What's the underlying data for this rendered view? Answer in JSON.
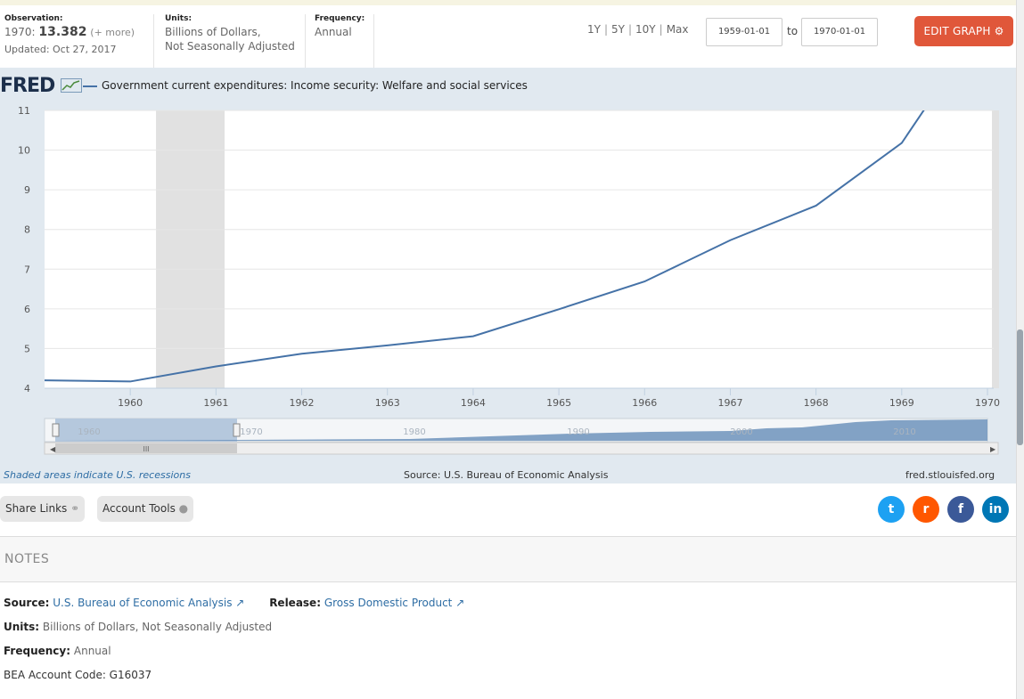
{
  "header": {
    "observation_label": "Observation:",
    "observation_date": "1970:",
    "observation_value": "13.382",
    "observation_more": "(+ more)",
    "updated": "Updated: Oct 27, 2017",
    "units_label": "Units:",
    "units_line1": "Billions of Dollars,",
    "units_line2": "Not Seasonally Adjusted",
    "frequency_label": "Frequency:",
    "frequency_value": "Annual",
    "ranges": [
      "1Y",
      "5Y",
      "10Y",
      "Max"
    ],
    "date_from": "1959-01-01",
    "to_label": "to",
    "date_to": "1970-01-01",
    "edit_label": "EDIT GRAPH"
  },
  "graph": {
    "logo": "FRED",
    "series_title": "Government current expenditures: Income security: Welfare and social services",
    "shaded_note": "Shaded areas indicate U.S. recessions",
    "source_note": "Source: U.S. Bureau of Economic Analysis",
    "url": "fred.stlouisfed.org",
    "navigator_ticks": [
      "1960",
      "1970",
      "1980",
      "1990",
      "2000",
      "2010"
    ],
    "scroll_grip": "III"
  },
  "chart_data": {
    "type": "line",
    "x": [
      "1959",
      "1960",
      "1961",
      "1962",
      "1963",
      "1964",
      "1965",
      "1966",
      "1967",
      "1968",
      "1969",
      "1970"
    ],
    "values": [
      4.2,
      4.17,
      4.55,
      4.87,
      5.08,
      5.31,
      5.99,
      6.69,
      7.73,
      8.6,
      10.18,
      13.382
    ],
    "xticks": [
      "1960",
      "1961",
      "1962",
      "1963",
      "1964",
      "1965",
      "1966",
      "1967",
      "1968",
      "1969",
      "1970"
    ],
    "yticks": [
      "4",
      "5",
      "6",
      "7",
      "8",
      "9",
      "10",
      "11"
    ],
    "ylim": [
      4,
      11
    ],
    "recession": [
      "1960.3",
      "1961.1"
    ],
    "series_color": "#4572a7",
    "recession_color": "#e1e1e1",
    "grid": true
  },
  "actions": {
    "share_links": "Share Links",
    "account_tools": "Account Tools",
    "social": [
      {
        "name": "twitter-icon",
        "glyph": "t",
        "color": "#1da1f2"
      },
      {
        "name": "reddit-icon",
        "glyph": "r",
        "color": "#ff5700"
      },
      {
        "name": "facebook-icon",
        "glyph": "f",
        "color": "#3b5998"
      },
      {
        "name": "linkedin-icon",
        "glyph": "in",
        "color": "#0077b5"
      }
    ]
  },
  "notes": {
    "title": "NOTES",
    "source_label": "Source:",
    "source_value": "U.S. Bureau of Economic Analysis",
    "release_label": "Release:",
    "release_value": "Gross Domestic Product",
    "units_label": "Units:",
    "units_value": "Billions of Dollars, Not Seasonally Adjusted",
    "frequency_label": "Frequency:",
    "frequency_value": "Annual",
    "bea_code": "BEA Account Code: G16037"
  }
}
